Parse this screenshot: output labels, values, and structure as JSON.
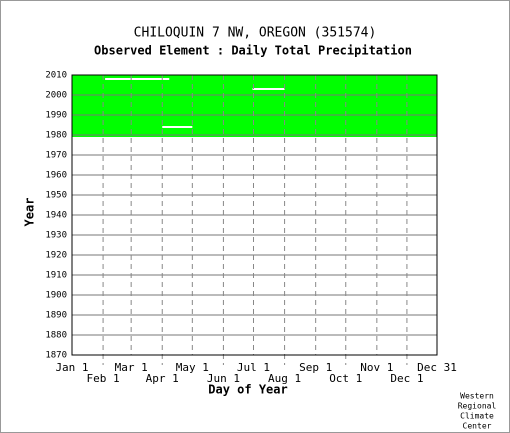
{
  "chart_data": {
    "type": "availability",
    "title": "CHILOQUIN 7 NW, OREGON   (351574)",
    "subtitle": "Observed Element : Daily Total Precipitation",
    "x_label": "Day of Year",
    "y_label": "Year",
    "credit": [
      "Western",
      "Regional",
      "Climate",
      "Center"
    ],
    "color": "#00ff00",
    "coverage": {
      "days": [
        1,
        365
      ],
      "years": [
        1979,
        2010
      ]
    },
    "gaps": [
      {
        "days": [
          34,
          98
        ],
        "year": 2008
      },
      {
        "days": [
          181,
          213
        ],
        "year": 2003
      },
      {
        "days": [
          91,
          121
        ],
        "year": 1984
      }
    ],
    "xlim": [
      1,
      365
    ],
    "xticks": [
      {
        "value": 1,
        "label": "Jan 1"
      },
      {
        "value": 32,
        "label": "Feb 1"
      },
      {
        "value": 60,
        "label": "Mar 1"
      },
      {
        "value": 91,
        "label": "Apr 1"
      },
      {
        "value": 121,
        "label": "May 1"
      },
      {
        "value": 152,
        "label": "Jun 1"
      },
      {
        "value": 182,
        "label": "Jul 1"
      },
      {
        "value": 213,
        "label": "Aug 1"
      },
      {
        "value": 244,
        "label": "Sep 1"
      },
      {
        "value": 274,
        "label": "Oct 1"
      },
      {
        "value": 305,
        "label": "Nov 1"
      },
      {
        "value": 335,
        "label": "Dec 1"
      },
      {
        "value": 365,
        "label": "Dec 31"
      }
    ],
    "ylim": [
      1870,
      2010
    ],
    "yticks": [
      1870,
      1880,
      1890,
      1900,
      1910,
      1920,
      1930,
      1940,
      1950,
      1960,
      1970,
      1980,
      1990,
      2000,
      2010
    ],
    "grid": true
  }
}
